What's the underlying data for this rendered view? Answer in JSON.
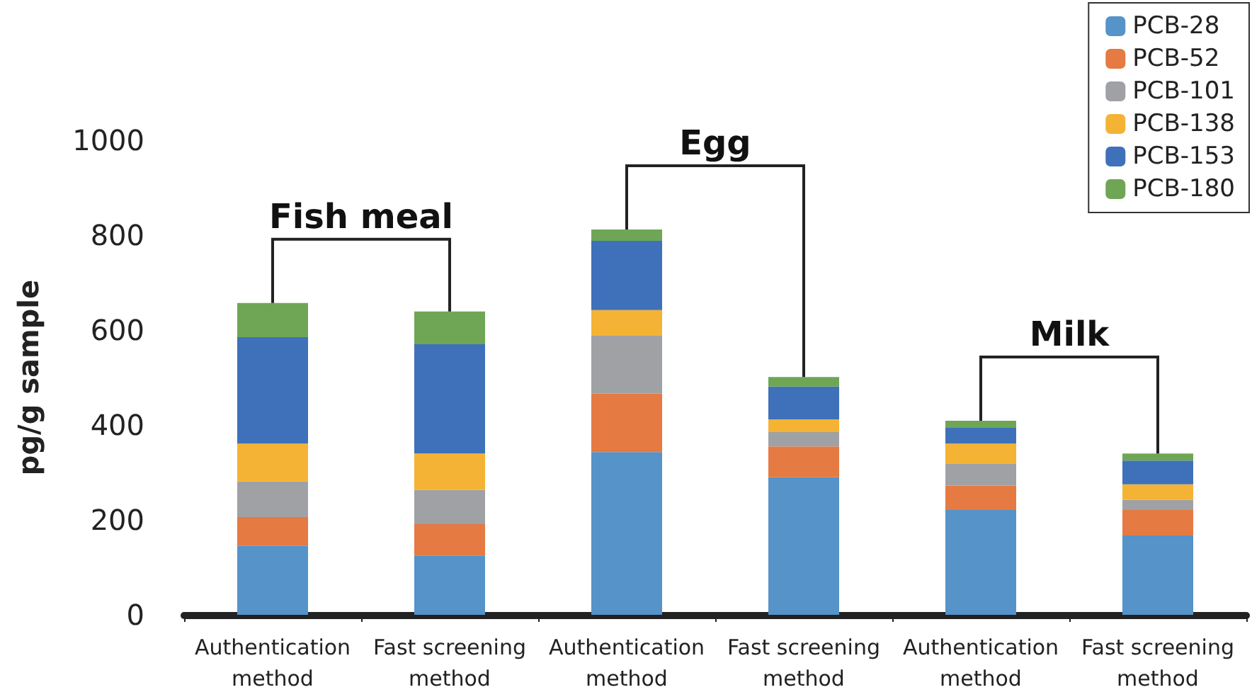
{
  "chart_data": {
    "type": "bar",
    "stacked": true,
    "ylabel": "pg/g sample",
    "categories": [
      "Authentication\nmethod",
      "Fast screening\nmethod",
      "Authentication\nmethod",
      "Fast screening\nmethod",
      "Authentication\nmethod",
      "Fast screening\nmethod"
    ],
    "series": [
      {
        "name": "PCB-28",
        "color": "#5593c8",
        "values": [
          146,
          125,
          343,
          290,
          221,
          167
        ]
      },
      {
        "name": "PCB-52",
        "color": "#e57a42",
        "values": [
          60,
          66,
          123,
          65,
          51,
          54
        ]
      },
      {
        "name": "PCB-101",
        "color": "#a0a1a4",
        "values": [
          75,
          72,
          122,
          30,
          47,
          21
        ]
      },
      {
        "name": "PCB-138",
        "color": "#f4b334",
        "values": [
          80,
          77,
          54,
          27,
          42,
          33
        ]
      },
      {
        "name": "PCB-153",
        "color": "#3e71b9",
        "values": [
          224,
          230,
          146,
          69,
          33,
          50
        ]
      },
      {
        "name": "PCB-180",
        "color": "#6fa656",
        "values": [
          72,
          69,
          24,
          20,
          15,
          15
        ]
      }
    ],
    "ylim": [
      0,
      1000
    ],
    "yticks": [
      0,
      200,
      400,
      600,
      800,
      1000
    ],
    "grid": false,
    "legend": "top right",
    "annotations": [
      "Fish meal",
      "Egg",
      "Milk"
    ]
  }
}
